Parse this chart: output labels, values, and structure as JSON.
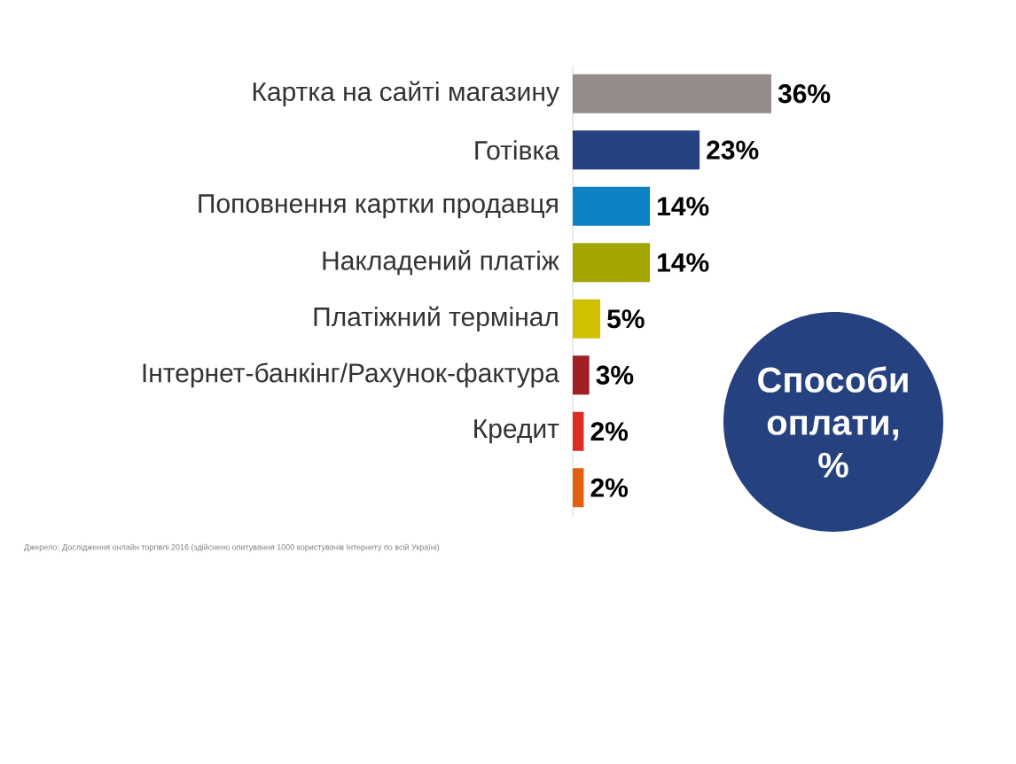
{
  "chart_data": {
    "type": "bar",
    "orientation": "horizontal",
    "title": "Способи оплати, %",
    "categories": [
      "Картка на сайті магазину",
      "Готівка",
      "Поповнення картки продавця",
      "Накладений платіж",
      "Платіжний термінал",
      "Інтернет-банкінг/Рахунок-фактура",
      "Кредит",
      null
    ],
    "values": [
      36,
      23,
      14,
      14,
      5,
      3,
      2,
      2
    ],
    "colors": [
      "#958c89",
      "#26417f",
      "#0f82c6",
      "#a3a600",
      "#cfc000",
      "#9e1f24",
      "#dd2c23",
      "#e0600f"
    ],
    "data_labels": true,
    "value_labels": [
      "36%",
      "23%",
      "14%",
      "14%",
      "5%",
      "3%",
      "2%",
      "2%"
    ],
    "annotations": [
      "Джерело: Дослідження онлайн торгівлі 2016 (здійснено опитування 1000 користувачів Інтернету по всій Україні)"
    ]
  }
}
